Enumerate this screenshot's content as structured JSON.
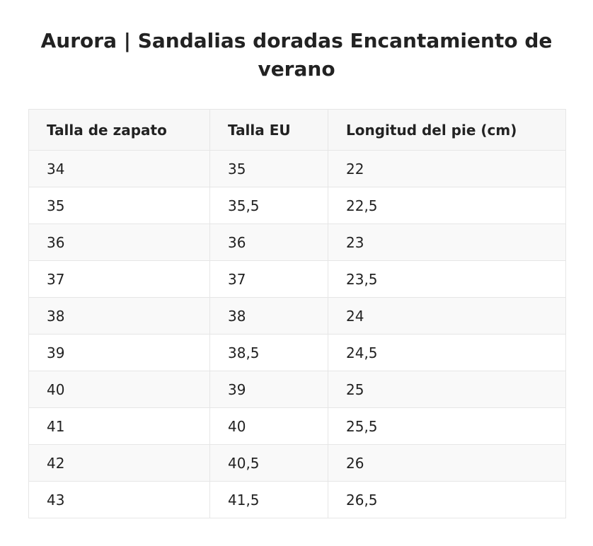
{
  "title": "Aurora | Sandalias doradas Encantamiento de verano",
  "table": {
    "headers": [
      "Talla de zapato",
      "Talla EU",
      "Longitud del pie (cm)"
    ],
    "rows": [
      [
        "34",
        "35",
        "22"
      ],
      [
        "35",
        "35,5",
        "22,5"
      ],
      [
        "36",
        "36",
        "23"
      ],
      [
        "37",
        "37",
        "23,5"
      ],
      [
        "38",
        "38",
        "24"
      ],
      [
        "39",
        "38,5",
        "24,5"
      ],
      [
        "40",
        "39",
        "25"
      ],
      [
        "41",
        "40",
        "25,5"
      ],
      [
        "42",
        "40,5",
        "26"
      ],
      [
        "43",
        "41,5",
        "26,5"
      ]
    ]
  }
}
